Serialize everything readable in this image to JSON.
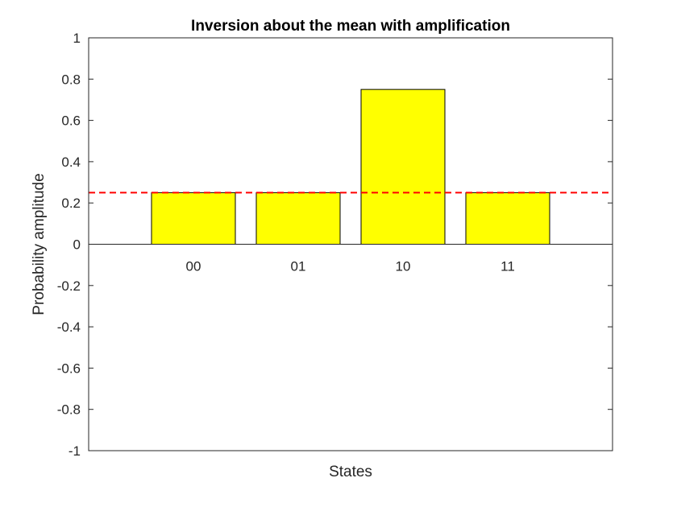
{
  "chart_data": {
    "type": "bar",
    "title": "Inversion about the mean with amplification",
    "xlabel": "States",
    "ylabel": "Probability amplitude",
    "categories": [
      "00",
      "01",
      "10",
      "11"
    ],
    "values": [
      0.25,
      0.25,
      0.75,
      0.25
    ],
    "ylim": [
      -1,
      1
    ],
    "yticks": [
      -1,
      -0.8,
      -0.6,
      -0.4,
      -0.2,
      0,
      0.2,
      0.4,
      0.6,
      0.8,
      1
    ],
    "ytick_labels": [
      "-1",
      "-0.8",
      "-0.6",
      "-0.4",
      "-0.2",
      "0",
      "0.2",
      "0.4",
      "0.6",
      "0.8",
      "1"
    ],
    "mean_line": {
      "value": 0.25,
      "style": "dashed",
      "color": "#ff0000"
    },
    "grid": false,
    "legend": "none",
    "bar_color": "#ffff00",
    "bar_edge_color": "#000000",
    "axes_color": "#262626"
  }
}
